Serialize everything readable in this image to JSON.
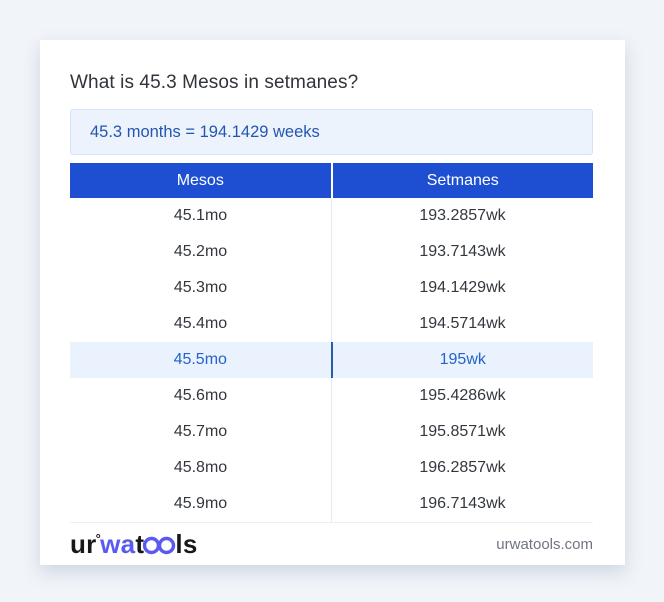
{
  "page": {
    "title": "What is 45.3 Mesos in setmanes?",
    "answer": "45.3 months = 194.1429 weeks"
  },
  "table": {
    "headers": [
      "Mesos",
      "Setmanes"
    ],
    "rows": [
      {
        "mesos": "45.1mo",
        "setmanes": "193.2857wk",
        "highlight": false
      },
      {
        "mesos": "45.2mo",
        "setmanes": "193.7143wk",
        "highlight": false
      },
      {
        "mesos": "45.3mo",
        "setmanes": "194.1429wk",
        "highlight": false
      },
      {
        "mesos": "45.4mo",
        "setmanes": "194.5714wk",
        "highlight": false
      },
      {
        "mesos": "45.5mo",
        "setmanes": "195wk",
        "highlight": true
      },
      {
        "mesos": "45.6mo",
        "setmanes": "195.4286wk",
        "highlight": false
      },
      {
        "mesos": "45.7mo",
        "setmanes": "195.8571wk",
        "highlight": false
      },
      {
        "mesos": "45.8mo",
        "setmanes": "196.2857wk",
        "highlight": false
      },
      {
        "mesos": "45.9mo",
        "setmanes": "196.7143wk",
        "highlight": false
      }
    ]
  },
  "footer": {
    "logo": {
      "part1": "ur",
      "ring": "°",
      "part2": "wa",
      "part3": "t",
      "part4": "ls"
    },
    "domain": "urwatools.com"
  },
  "colors": {
    "page_background": "#F1F4F9",
    "card_background": "#FFFFFF",
    "header_blue": "#1E4FD2",
    "answer_box_background": "#EDF3FC",
    "answer_text_blue": "#2456B0",
    "highlight_row_background": "#E9F2FD",
    "highlight_text_blue": "#2563C9",
    "highlight_divider_blue": "#2A5CA8",
    "logo_accent_blue": "#5A5AF0",
    "body_text": "#33373E",
    "muted_text": "#6F7580"
  }
}
